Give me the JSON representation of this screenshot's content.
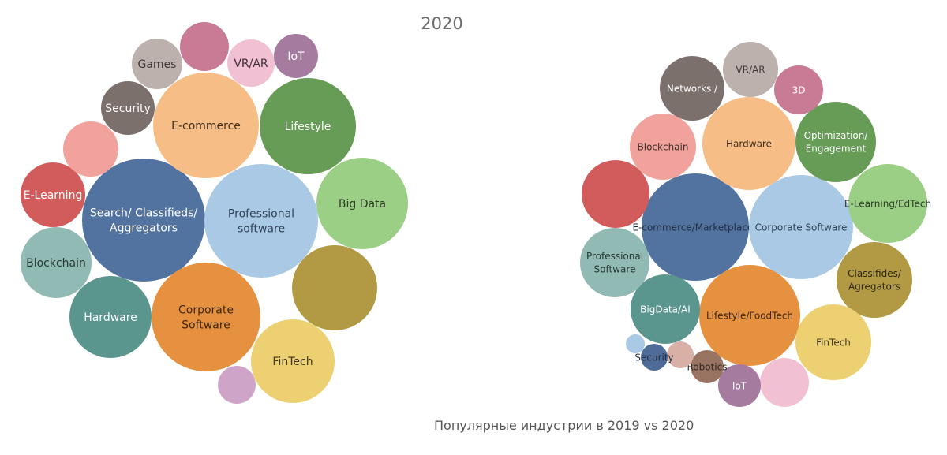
{
  "title": "2020",
  "caption": "Популярные индустрии в 2019 vs 2020",
  "chart_data": [
    {
      "type": "bubble",
      "bubbles": [
        {
          "label": "Search/ Classifieds/ Aggregators",
          "color": "#52739f",
          "text_color": "#ffffff"
        },
        {
          "label": "Professional software",
          "color": "#a9c9e5",
          "text_color": "#2e3f55"
        },
        {
          "label": "E-commerce",
          "color": "#f6be86",
          "text_color": "#3e2e1c"
        },
        {
          "label": "Lifestyle",
          "color": "#679c57",
          "text_color": "#ffffff"
        },
        {
          "label": "Big Data",
          "color": "#9ccf86",
          "text_color": "#2d3d24"
        },
        {
          "label": "",
          "color": "#b19a43",
          "text_color": "#ffffff"
        },
        {
          "label": "Corporate Software",
          "color": "#e69140",
          "text_color": "#3d2610"
        },
        {
          "label": "FinTech",
          "color": "#edd071",
          "text_color": "#3d341a"
        },
        {
          "label": "",
          "color": "#cea5c9",
          "text_color": "#ffffff"
        },
        {
          "label": "Hardware",
          "color": "#5a958e",
          "text_color": "#ffffff"
        },
        {
          "label": "Blockchain",
          "color": "#92bab5",
          "text_color": "#263836"
        },
        {
          "label": "E-Learning",
          "color": "#d25c5c",
          "text_color": "#ffffff"
        },
        {
          "label": "",
          "color": "#f2a29d",
          "text_color": "#ffffff"
        },
        {
          "label": "Security",
          "color": "#7c706d",
          "text_color": "#ffffff"
        },
        {
          "label": "Games",
          "color": "#bcb1ac",
          "text_color": "#3d3735"
        },
        {
          "label": "",
          "color": "#c97a94",
          "text_color": "#ffffff"
        },
        {
          "label": "VR/AR",
          "color": "#f2c0d3",
          "text_color": "#3d3137"
        },
        {
          "label": "IoT",
          "color": "#a57ca0",
          "text_color": "#ffffff"
        }
      ]
    },
    {
      "type": "bubble",
      "bubbles": [
        {
          "label": "E-commerce/Marketplaces",
          "color": "#52739f",
          "text_color": "#1f2c40"
        },
        {
          "label": "Corporate Software",
          "color": "#a9c9e5",
          "text_color": "#2e3f55"
        },
        {
          "label": "Hardware",
          "color": "#f6be86",
          "text_color": "#3e2e1c"
        },
        {
          "label": "Lifestyle/FoodTech",
          "color": "#e69140",
          "text_color": "#3d2610"
        },
        {
          "label": "Optimization/ Engagement",
          "color": "#679c57",
          "text_color": "#ffffff"
        },
        {
          "label": "E-Learning/EdTech",
          "color": "#9ccf86",
          "text_color": "#2d3d24"
        },
        {
          "label": "Classifides/ Agregators",
          "color": "#b19a43",
          "text_color": "#2e2611"
        },
        {
          "label": "FinTech",
          "color": "#edd071",
          "text_color": "#3d341a"
        },
        {
          "label": "",
          "color": "#f2c0d3",
          "text_color": "#3d3137"
        },
        {
          "label": "IoT",
          "color": "#a57ca0",
          "text_color": "#ffffff"
        },
        {
          "label": "Robotics",
          "color": "#9a7463",
          "text_color": "#2e2620"
        },
        {
          "label": "",
          "color": "#d8b0a6",
          "text_color": "#3d3137"
        },
        {
          "label": "Security",
          "color": "#4f6b98",
          "text_color": "#1f2c40"
        },
        {
          "label": "",
          "color": "#a9c9e5",
          "text_color": "#2e3f55"
        },
        {
          "label": "BigData/AI",
          "color": "#5a958e",
          "text_color": "#ffffff"
        },
        {
          "label": "Professional Software",
          "color": "#92bab5",
          "text_color": "#263836"
        },
        {
          "label": "",
          "color": "#d25c5c",
          "text_color": "#ffffff"
        },
        {
          "label": "Blockchain",
          "color": "#f2a29d",
          "text_color": "#3d2a28"
        },
        {
          "label": "Networks /",
          "color": "#7c706d",
          "text_color": "#ffffff"
        },
        {
          "label": "VR/AR",
          "color": "#bcb1ac",
          "text_color": "#3d3735"
        },
        {
          "label": "3D",
          "color": "#c97a94",
          "text_color": "#ffffff"
        }
      ]
    }
  ]
}
